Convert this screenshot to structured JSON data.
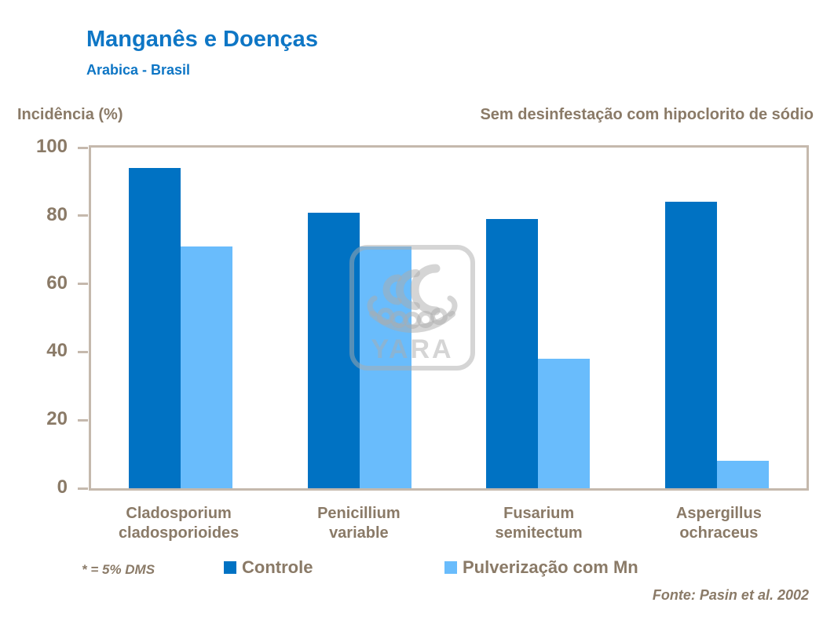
{
  "header": {
    "title": "Manganês e Doenças",
    "subtitle": "Arabica - Brasil"
  },
  "labels": {
    "y_axis_title": "Incidência (%)",
    "condition": "Sem desinfestação com hipoclorito de sódio"
  },
  "chart_data": {
    "type": "bar",
    "title": "Manganês e Doenças",
    "subtitle": "Arabica - Brasil",
    "ylabel": "Incidência (%)",
    "xlabel": "",
    "ylim": [
      0,
      100
    ],
    "yticks": [
      0,
      20,
      40,
      60,
      80,
      100
    ],
    "grid": false,
    "legend_position": "bottom",
    "annotation": "Sem desinfestação com hipoclorito de sódio",
    "categories": [
      "Cladosporium cladosporioides",
      "Penicillium variable",
      "Fusarium semitectum",
      "Aspergillus ochraceus"
    ],
    "categories_lines": [
      [
        "Cladosporium",
        "cladosporioides"
      ],
      [
        "Penicillium",
        "variable"
      ],
      [
        "Fusarium",
        "semitectum"
      ],
      [
        "Aspergillus",
        "ochraceus"
      ]
    ],
    "series": [
      {
        "name": "Controle",
        "color": "#0072C3",
        "values": [
          94,
          81,
          79,
          84
        ]
      },
      {
        "name": "Pulverização com Mn",
        "color": "#69BCFC",
        "values": [
          71,
          71,
          38,
          8
        ]
      }
    ]
  },
  "footer": {
    "note": "* = 5% DMS",
    "source": "Fonte: Pasin et al. 2002"
  },
  "watermark": {
    "brand": "YARA",
    "icon": "yara-viking-ship-logo"
  },
  "colors": {
    "title_blue": "#0E76C5",
    "text_brown": "#8A7A67",
    "axis_tan": "#C5B9AD",
    "controle_bar": "#0072C3",
    "pulverizacao_bar": "#69BCFC",
    "watermark_gray": "rgba(172,172,172,0.5)"
  }
}
